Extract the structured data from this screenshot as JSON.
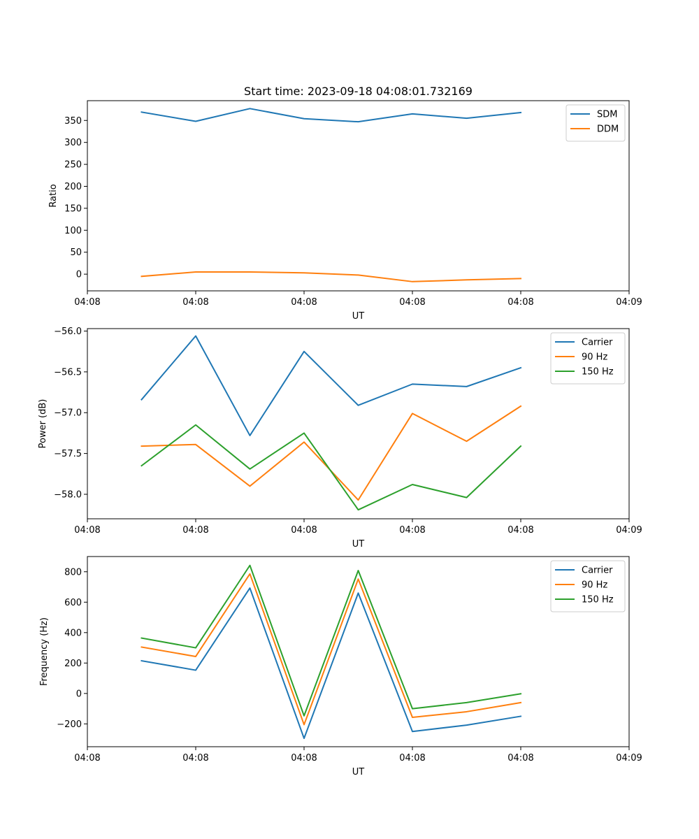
{
  "figure": {
    "title": "Start time: 2023-09-18 04:08:01.732169"
  },
  "chart_data": [
    {
      "type": "line",
      "title": "Start time: 2023-09-18 04:08:01.732169",
      "xlabel": "UT",
      "ylabel": "Ratio",
      "x": [
        1,
        2,
        3,
        4,
        5,
        6,
        7,
        8
      ],
      "xlim": [
        0,
        10
      ],
      "x_ticks": [
        0,
        2,
        4,
        6,
        8,
        10
      ],
      "x_tick_labels": [
        "04:08",
        "04:08",
        "04:08",
        "04:08",
        "04:08",
        "04:09"
      ],
      "ylim": [
        -38,
        395
      ],
      "y_ticks": [
        0,
        50,
        100,
        150,
        200,
        250,
        300,
        350
      ],
      "y_tick_labels": [
        "0",
        "50",
        "100",
        "150",
        "200",
        "250",
        "300",
        "350"
      ],
      "legend_position": "top-right",
      "series": [
        {
          "name": "SDM",
          "color": "#1f77b4",
          "values": [
            369,
            348,
            377,
            354,
            347,
            365,
            355,
            368
          ]
        },
        {
          "name": "DDM",
          "color": "#ff7f0e",
          "values": [
            -5,
            5,
            5,
            3,
            -2,
            -17,
            -13,
            -10
          ]
        }
      ]
    },
    {
      "type": "line",
      "xlabel": "UT",
      "ylabel": "Power (dB)",
      "x": [
        1,
        2,
        3,
        4,
        5,
        6,
        7,
        8
      ],
      "xlim": [
        0,
        10
      ],
      "x_ticks": [
        0,
        2,
        4,
        6,
        8,
        10
      ],
      "x_tick_labels": [
        "04:08",
        "04:08",
        "04:08",
        "04:08",
        "04:08",
        "04:09"
      ],
      "ylim": [
        -58.3,
        -55.97
      ],
      "y_ticks": [
        -56.0,
        -56.5,
        -57.0,
        -57.5,
        -58.0
      ],
      "y_tick_labels": [
        "−56.0",
        "−56.5",
        "−57.0",
        "−57.5",
        "−58.0"
      ],
      "legend_position": "top-right",
      "series": [
        {
          "name": "Carrier",
          "color": "#1f77b4",
          "values": [
            -56.84,
            -56.06,
            -57.28,
            -56.25,
            -56.91,
            -56.65,
            -56.68,
            -56.45
          ]
        },
        {
          "name": "90 Hz",
          "color": "#ff7f0e",
          "values": [
            -57.41,
            -57.39,
            -57.9,
            -57.36,
            -58.07,
            -57.01,
            -57.35,
            -56.92
          ]
        },
        {
          "name": "150 Hz",
          "color": "#2ca02c",
          "values": [
            -57.65,
            -57.15,
            -57.69,
            -57.25,
            -58.19,
            -57.88,
            -58.04,
            -57.41
          ]
        }
      ]
    },
    {
      "type": "line",
      "xlabel": "UT",
      "ylabel": "Frequency (Hz)",
      "x": [
        1,
        2,
        3,
        4,
        5,
        6,
        7,
        8
      ],
      "xlim": [
        0,
        10
      ],
      "x_ticks": [
        0,
        2,
        4,
        6,
        8,
        10
      ],
      "x_tick_labels": [
        "04:08",
        "04:08",
        "04:08",
        "04:08",
        "04:08",
        "04:09"
      ],
      "ylim": [
        -350,
        900
      ],
      "y_ticks": [
        -200,
        0,
        200,
        400,
        600,
        800
      ],
      "y_tick_labels": [
        "−200",
        "0",
        "200",
        "400",
        "600",
        "800"
      ],
      "legend_position": "top-right",
      "series": [
        {
          "name": "Carrier",
          "color": "#1f77b4",
          "values": [
            215,
            153,
            693,
            -295,
            660,
            -250,
            -208,
            -150
          ]
        },
        {
          "name": "90 Hz",
          "color": "#ff7f0e",
          "values": [
            305,
            243,
            786,
            -205,
            752,
            -157,
            -120,
            -60
          ]
        },
        {
          "name": "150 Hz",
          "color": "#2ca02c",
          "values": [
            364,
            300,
            842,
            -147,
            808,
            -100,
            -60,
            -2
          ]
        }
      ]
    }
  ]
}
